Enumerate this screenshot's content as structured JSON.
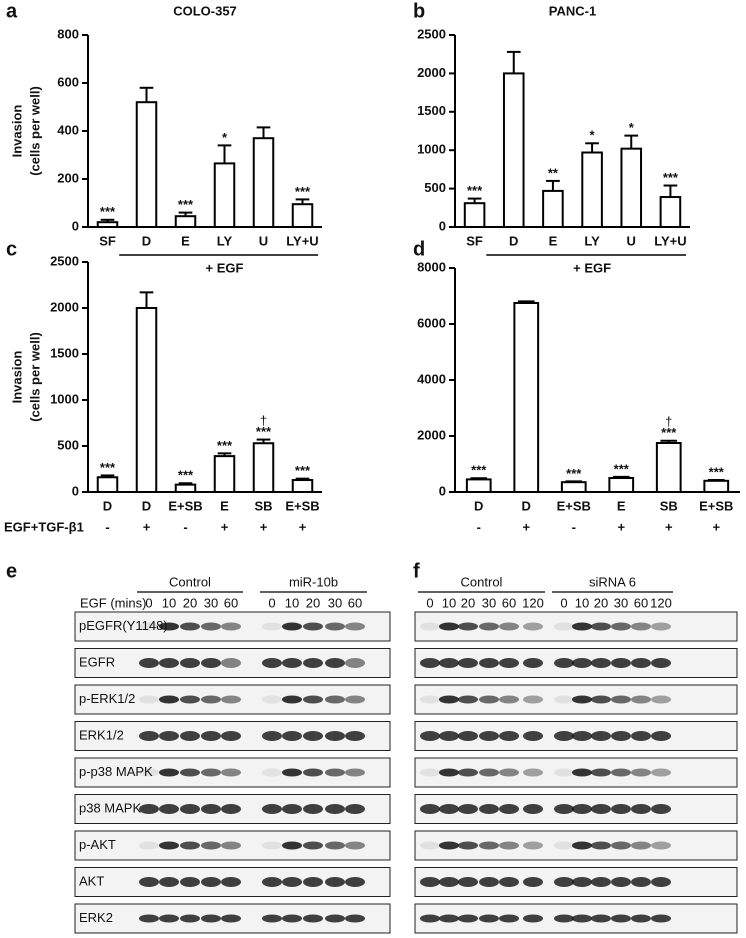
{
  "chart_data": [
    {
      "type": "bar",
      "panel": "a",
      "title": "COLO-357",
      "ylabel": [
        "Invasion",
        "(cells per well)"
      ],
      "categories": [
        "SF",
        "D",
        "E",
        "LY",
        "U",
        "LY+U"
      ],
      "values": [
        20,
        520,
        45,
        265,
        370,
        95
      ],
      "errors": [
        10,
        60,
        15,
        75,
        45,
        20
      ],
      "annotations": [
        "***",
        null,
        "***",
        "*",
        null,
        "***"
      ],
      "group_label": "+ EGF",
      "ylim": [
        0,
        800
      ],
      "yticks": [
        0,
        200,
        400,
        600,
        800
      ]
    },
    {
      "type": "bar",
      "panel": "b",
      "title": "PANC-1",
      "categories": [
        "SF",
        "D",
        "E",
        "LY",
        "U",
        "LY+U"
      ],
      "values": [
        310,
        2000,
        470,
        970,
        1020,
        390
      ],
      "errors": [
        60,
        280,
        130,
        120,
        170,
        150
      ],
      "annotations": [
        "***",
        null,
        "**",
        "*",
        "*",
        "***"
      ],
      "group_label": "+ EGF",
      "ylim": [
        0,
        2500
      ],
      "yticks": [
        0,
        500,
        1000,
        1500,
        2000,
        2500
      ]
    },
    {
      "type": "bar",
      "panel": "c",
      "ylabel": [
        "Invasion",
        "(cells per well)"
      ],
      "categories": [
        "D",
        "D",
        "E+SB",
        "E",
        "SB",
        "E+SB"
      ],
      "values": [
        160,
        2000,
        80,
        390,
        530,
        130
      ],
      "errors": [
        20,
        170,
        15,
        30,
        40,
        15
      ],
      "annotations": [
        "***",
        null,
        "***",
        "***",
        "***",
        "***"
      ],
      "daggers": [
        null,
        null,
        null,
        null,
        "†",
        null
      ],
      "treatment_label": "EGF+TGF-β1",
      "treatment": [
        "-",
        "+",
        "-",
        "+",
        "+",
        "+"
      ],
      "ylim": [
        0,
        2500
      ],
      "yticks": [
        0,
        500,
        1000,
        1500,
        2000,
        2500
      ]
    },
    {
      "type": "bar",
      "panel": "d",
      "categories": [
        "D",
        "D",
        "E+SB",
        "E",
        "SB",
        "E+SB"
      ],
      "values": [
        450,
        6750,
        350,
        500,
        1750,
        400
      ],
      "errors": [
        40,
        60,
        30,
        40,
        80,
        30
      ],
      "annotations": [
        "***",
        null,
        "***",
        "***",
        "***",
        "***"
      ],
      "daggers": [
        null,
        null,
        null,
        null,
        "†",
        null
      ],
      "treatment": [
        "-",
        "+",
        "-",
        "+",
        "+",
        "+"
      ],
      "ylim": [
        0,
        8000
      ],
      "yticks": [
        0,
        2000,
        4000,
        6000,
        8000
      ]
    }
  ],
  "blots": [
    {
      "panel": "e",
      "groups": [
        "Control",
        "miR-10b"
      ],
      "time_label": "EGF (mins)",
      "times": [
        0,
        10,
        20,
        30,
        60,
        0,
        10,
        20,
        30,
        60
      ],
      "rows": [
        "pEGFR(Y1148)",
        "EGFR",
        "p-ERK1/2",
        "ERK1/2",
        "p-p38 MAPK",
        "p38 MAPK",
        "p-AKT",
        "AKT",
        "ERK2"
      ]
    },
    {
      "panel": "f",
      "groups": [
        "Control",
        "siRNA 6"
      ],
      "times": [
        0,
        10,
        20,
        30,
        60,
        120,
        0,
        10,
        20,
        30,
        60,
        120
      ]
    }
  ]
}
